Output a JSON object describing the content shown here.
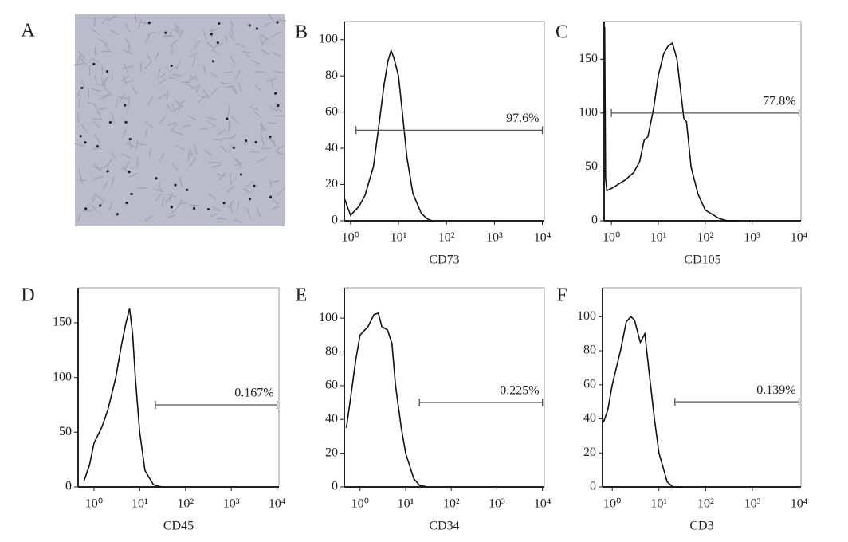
{
  "chart_data": [
    {
      "type": "image",
      "panel": "A"
    },
    {
      "type": "histogram-curve",
      "panel": "B",
      "xlabel": "CD73",
      "log_x": true,
      "color": "#111111",
      "x": [
        0.75,
        1,
        1.5,
        2,
        3,
        4,
        5,
        6,
        7,
        8,
        10,
        12,
        15,
        20,
        30,
        40,
        50
      ],
      "values": [
        12,
        3,
        8,
        14,
        30,
        55,
        75,
        88,
        94,
        90,
        80,
        60,
        35,
        15,
        4,
        1,
        0
      ],
      "xlim": [
        0.74,
        11000
      ],
      "ylim": [
        0,
        110
      ],
      "xticks": [
        {
          "value": 1,
          "label": "10⁰"
        },
        {
          "value": 10,
          "label": "10¹"
        },
        {
          "value": 100,
          "label": "10²"
        },
        {
          "value": 1000,
          "label": "10³"
        },
        {
          "value": 10000,
          "label": "10⁴"
        }
      ],
      "yticks": [
        0,
        20,
        40,
        60,
        80,
        100
      ],
      "gate": {
        "value": 97.6,
        "value_label": "97.6%",
        "range": [
          1.3,
          10000
        ],
        "y": 50
      }
    },
    {
      "type": "histogram-curve",
      "panel": "C",
      "xlabel": "CD105",
      "log_x": true,
      "color": "#111111",
      "x": [
        0.72,
        0.75,
        0.8,
        1,
        2,
        3,
        4,
        5,
        6,
        8,
        10,
        13,
        16,
        20,
        25,
        30,
        35,
        40,
        50,
        70,
        100,
        200,
        300,
        500
      ],
      "values": [
        180,
        40,
        28,
        30,
        38,
        45,
        55,
        75,
        78,
        105,
        135,
        155,
        162,
        165,
        150,
        120,
        95,
        92,
        50,
        25,
        10,
        2,
        0,
        0
      ],
      "xlim": [
        0.7,
        11000
      ],
      "ylim": [
        0,
        185
      ],
      "xticks": [
        {
          "value": 1,
          "label": "10⁰"
        },
        {
          "value": 10,
          "label": "10¹"
        },
        {
          "value": 100,
          "label": "10²"
        },
        {
          "value": 1000,
          "label": "10³"
        },
        {
          "value": 10000,
          "label": "10⁴"
        }
      ],
      "yticks": [
        0,
        50,
        100,
        150
      ],
      "gate": {
        "value": 77.8,
        "value_label": "77.8%",
        "range": [
          1.0,
          10000
        ],
        "y": 100
      }
    },
    {
      "type": "histogram-curve",
      "panel": "D",
      "xlabel": "CD45",
      "log_x": true,
      "color": "#111111",
      "x": [
        0.6,
        0.8,
        1,
        1.5,
        2,
        3,
        4,
        5,
        6,
        7,
        8,
        10,
        13,
        20,
        30
      ],
      "values": [
        5,
        20,
        40,
        55,
        70,
        100,
        130,
        150,
        163,
        140,
        100,
        50,
        15,
        2,
        0
      ],
      "xlim": [
        0.45,
        11000
      ],
      "ylim": [
        0,
        182
      ],
      "xticks": [
        {
          "value": 1,
          "label": "10⁰"
        },
        {
          "value": 10,
          "label": "10¹"
        },
        {
          "value": 100,
          "label": "10²"
        },
        {
          "value": 1000,
          "label": "10³"
        },
        {
          "value": 10000,
          "label": "10⁴"
        }
      ],
      "yticks": [
        0,
        50,
        100,
        150
      ],
      "gate": {
        "value": 0.167,
        "value_label": "0.167%",
        "range": [
          22,
          10000
        ],
        "y": 75
      }
    },
    {
      "type": "histogram-curve",
      "panel": "E",
      "xlabel": "CD34",
      "log_x": true,
      "color": "#111111",
      "x": [
        0.5,
        0.6,
        0.8,
        1,
        1.5,
        2,
        2.5,
        3,
        4,
        5,
        6,
        8,
        10,
        15,
        20,
        30
      ],
      "values": [
        35,
        50,
        75,
        90,
        95,
        102,
        103,
        95,
        93,
        85,
        60,
        35,
        20,
        5,
        1,
        0
      ],
      "xlim": [
        0.45,
        11000
      ],
      "ylim": [
        0,
        118
      ],
      "xticks": [
        {
          "value": 1,
          "label": "10⁰"
        },
        {
          "value": 10,
          "label": "10¹"
        },
        {
          "value": 100,
          "label": "10²"
        },
        {
          "value": 1000,
          "label": "10³"
        },
        {
          "value": 10000,
          "label": "10⁴"
        }
      ],
      "yticks": [
        0,
        20,
        40,
        60,
        80,
        100
      ],
      "gate": {
        "value": 0.225,
        "value_label": "0.225%",
        "range": [
          20,
          10000
        ],
        "y": 50
      }
    },
    {
      "type": "histogram-curve",
      "panel": "F",
      "xlabel": "CD3",
      "log_x": true,
      "color": "#111111",
      "x": [
        0.65,
        0.8,
        1,
        1.5,
        2,
        2.5,
        3,
        4,
        5,
        6,
        8,
        10,
        15,
        20,
        30
      ],
      "values": [
        38,
        45,
        60,
        80,
        97,
        100,
        98,
        85,
        90,
        70,
        40,
        20,
        3,
        0,
        0
      ],
      "xlim": [
        0.62,
        11000
      ],
      "ylim": [
        0,
        117
      ],
      "xticks": [
        {
          "value": 1,
          "label": "10⁰"
        },
        {
          "value": 10,
          "label": "10¹"
        },
        {
          "value": 100,
          "label": "10²"
        },
        {
          "value": 1000,
          "label": "10³"
        },
        {
          "value": 10000,
          "label": "10⁴"
        }
      ],
      "yticks": [
        0,
        20,
        40,
        60,
        80,
        100
      ],
      "gate": {
        "value": 0.139,
        "value_label": "0.139%",
        "range": [
          22,
          10000
        ],
        "y": 50
      }
    }
  ]
}
